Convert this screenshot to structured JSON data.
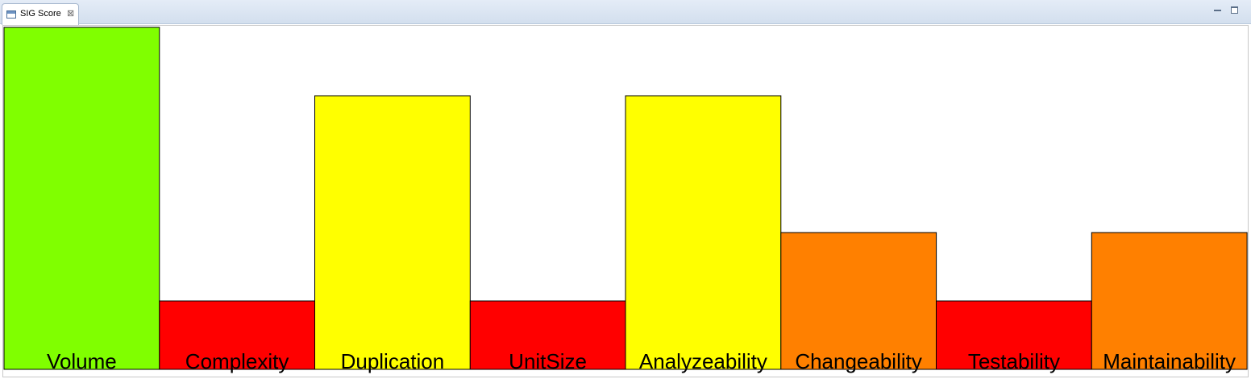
{
  "tab": {
    "title": "SIG Score",
    "close_glyph": "⊠",
    "icon": "view-window-icon"
  },
  "window_controls": {
    "minimize_icon": "minimize-icon",
    "maximize_icon": "maximize-icon"
  },
  "chart_data": {
    "type": "bar",
    "categories": [
      "Volume",
      "Complexity",
      "Duplication",
      "UnitSize",
      "Analyzeability",
      "Changeability",
      "Testability",
      "Maintainability"
    ],
    "values": [
      5,
      1,
      4,
      1,
      4,
      2,
      1,
      2
    ],
    "colors": [
      "#80ff00",
      "#ff0000",
      "#ffff00",
      "#ff0000",
      "#ffff00",
      "#ff8000",
      "#ff0000",
      "#ff8000"
    ],
    "ylim": [
      0,
      5
    ],
    "grid": false,
    "legend": "none",
    "title": "",
    "xlabel": "",
    "ylabel": ""
  }
}
